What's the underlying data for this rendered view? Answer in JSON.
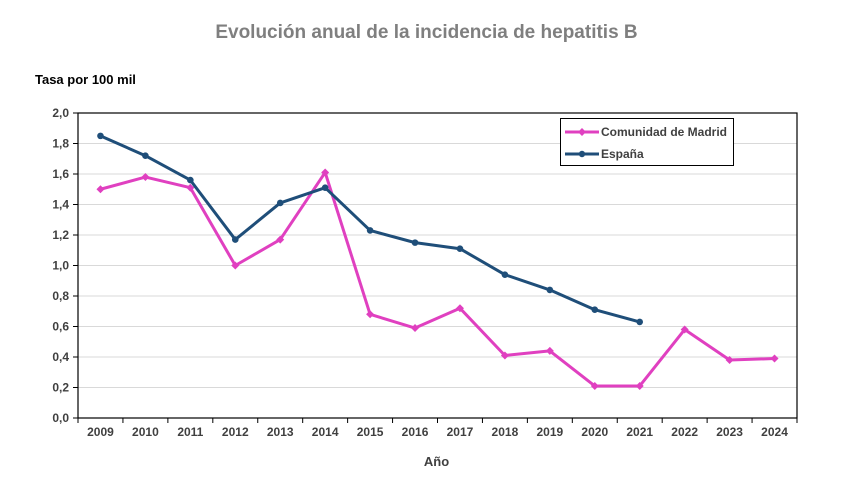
{
  "chart_data": {
    "type": "line",
    "title": "Evolución anual de la incidencia de hepatitis B",
    "ylabel": "Tasa por 100 mil",
    "xlabel": "Año",
    "categories": [
      "2009",
      "2010",
      "2011",
      "2012",
      "2013",
      "2014",
      "2015",
      "2016",
      "2017",
      "2018",
      "2019",
      "2020",
      "2021",
      "2022",
      "2023",
      "2024"
    ],
    "ylim": [
      0,
      2.0
    ],
    "yticks": [
      "0,0",
      "0,2",
      "0,4",
      "0,6",
      "0,8",
      "1,0",
      "1,2",
      "1,4",
      "1,6",
      "1,8",
      "2,0"
    ],
    "grid": true,
    "legend_position": "top-right",
    "series": [
      {
        "name": "Comunidad de Madrid",
        "color": "#e040c0",
        "marker": "diamond",
        "values": [
          1.5,
          1.58,
          1.51,
          1.0,
          1.17,
          1.61,
          0.68,
          0.59,
          0.72,
          0.41,
          0.44,
          0.21,
          0.21,
          0.58,
          0.38,
          0.39
        ]
      },
      {
        "name": "España",
        "color": "#1f4e79",
        "marker": "circle",
        "values": [
          1.85,
          1.72,
          1.56,
          1.17,
          1.41,
          1.51,
          1.23,
          1.15,
          1.11,
          0.94,
          0.84,
          0.71,
          0.63,
          null,
          null,
          null
        ]
      }
    ]
  }
}
